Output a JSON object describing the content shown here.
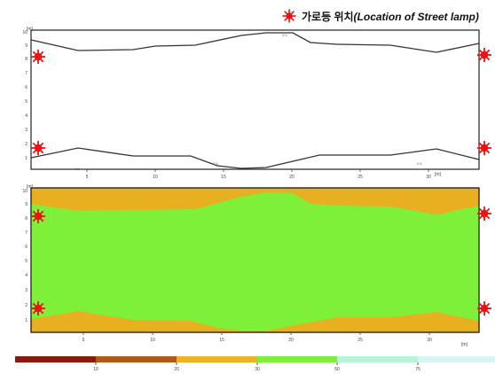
{
  "legend": {
    "label_korean": "가로등 위치",
    "label_english": "(Location of Street lamp)",
    "lamp_icon": "street-lamp-sun-icon",
    "lamp_color": "#ee1111"
  },
  "top_plot": {
    "y_unit": "[m]",
    "x_unit": "[m]",
    "y_ticks": [
      "10",
      "9",
      "8",
      "7",
      "6",
      "5",
      "4",
      "3",
      "2",
      "1"
    ],
    "x_ticks": [
      "5",
      "10",
      "15",
      "20",
      "25",
      "30"
    ],
    "contour_labels": [
      "0.5",
      "0.5",
      "0.5",
      "0.5"
    ],
    "lamp_count": 4
  },
  "bottom_plot": {
    "y_unit": "[m]",
    "x_unit": "[m]",
    "y_ticks": [
      "10",
      "9",
      "8",
      "7",
      "6",
      "5",
      "4",
      "3",
      "2",
      "1"
    ],
    "x_ticks": [
      "5",
      "10",
      "15",
      "20",
      "25",
      "30"
    ],
    "fill_colors": {
      "outer": "#e8b020",
      "inner": "#7ff03a"
    },
    "lamp_count": 4
  },
  "colorbar": {
    "colors": [
      "#8b1a0c",
      "#b05a18",
      "#ecb424",
      "#7ff03a",
      "#b8f2d8",
      "#d6f6f6"
    ],
    "labels": [
      "10",
      "20",
      "30",
      "50",
      "75"
    ]
  }
}
